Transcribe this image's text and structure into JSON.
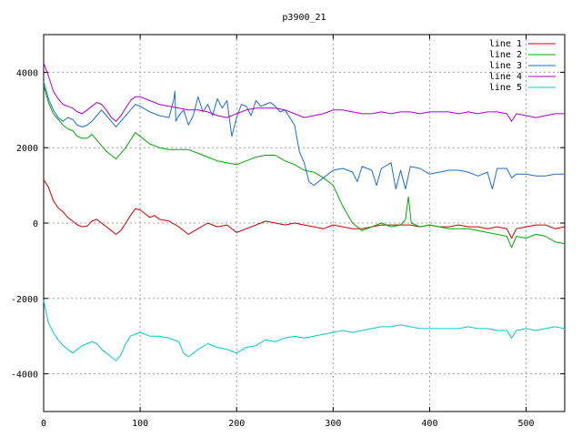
{
  "chart_data": {
    "type": "line",
    "title": "p3900_21",
    "xlabel": "",
    "ylabel": "",
    "xlim": [
      0,
      540
    ],
    "ylim": [
      -5000,
      5000
    ],
    "xticks": [
      0,
      100,
      200,
      300,
      400,
      500
    ],
    "yticks": [
      -4000,
      -2000,
      0,
      2000,
      4000
    ],
    "grid": true,
    "legend_position": "top-right",
    "series": [
      {
        "name": "line 1",
        "color": "#cc0000",
        "x": [
          0,
          5,
          10,
          15,
          20,
          25,
          30,
          35,
          40,
          45,
          50,
          55,
          60,
          65,
          70,
          75,
          80,
          85,
          90,
          95,
          100,
          105,
          110,
          115,
          120,
          130,
          140,
          150,
          160,
          170,
          180,
          190,
          200,
          210,
          220,
          230,
          240,
          250,
          260,
          270,
          280,
          290,
          300,
          310,
          320,
          330,
          340,
          350,
          360,
          370,
          380,
          390,
          400,
          410,
          420,
          430,
          440,
          450,
          460,
          470,
          480,
          485,
          490,
          500,
          510,
          520,
          530,
          540
        ],
        "y": [
          1150,
          950,
          600,
          400,
          300,
          150,
          50,
          -50,
          -100,
          -80,
          50,
          100,
          0,
          -100,
          -200,
          -300,
          -200,
          0,
          200,
          380,
          350,
          250,
          150,
          200,
          100,
          50,
          -100,
          -300,
          -150,
          0,
          -100,
          -50,
          -250,
          -150,
          -50,
          50,
          0,
          -50,
          0,
          -50,
          -100,
          -150,
          -50,
          -100,
          -150,
          -150,
          -100,
          -50,
          -50,
          -50,
          -50,
          -100,
          -50,
          -100,
          -100,
          -50,
          -100,
          -100,
          -150,
          -100,
          -150,
          -400,
          -150,
          -100,
          -50,
          -50,
          -150,
          -100
        ]
      },
      {
        "name": "line 2",
        "color": "#00aa00",
        "x": [
          0,
          5,
          10,
          15,
          20,
          25,
          30,
          35,
          40,
          45,
          50,
          55,
          60,
          65,
          70,
          75,
          80,
          85,
          90,
          95,
          100,
          110,
          120,
          130,
          140,
          150,
          160,
          170,
          180,
          190,
          200,
          210,
          220,
          230,
          240,
          250,
          260,
          270,
          280,
          290,
          300,
          310,
          320,
          330,
          340,
          350,
          360,
          370,
          375,
          378,
          381,
          390,
          400,
          410,
          420,
          430,
          440,
          450,
          460,
          470,
          480,
          485,
          490,
          500,
          510,
          520,
          530,
          540
        ],
        "y": [
          3650,
          3200,
          2900,
          2750,
          2600,
          2500,
          2450,
          2300,
          2250,
          2250,
          2350,
          2200,
          2050,
          1900,
          1800,
          1700,
          1850,
          2000,
          2200,
          2400,
          2300,
          2100,
          2000,
          1950,
          1950,
          1950,
          1850,
          1750,
          1650,
          1600,
          1550,
          1650,
          1750,
          1800,
          1800,
          1650,
          1550,
          1400,
          1350,
          1200,
          1000,
          450,
          0,
          -200,
          -100,
          0,
          -100,
          -50,
          100,
          700,
          0,
          -100,
          -50,
          -100,
          -150,
          -150,
          -150,
          -200,
          -250,
          -300,
          -350,
          -650,
          -350,
          -400,
          -300,
          -350,
          -500,
          -550
        ]
      },
      {
        "name": "line 3",
        "color": "#1a6fcc",
        "x": [
          0,
          5,
          10,
          15,
          20,
          25,
          30,
          35,
          40,
          45,
          50,
          55,
          60,
          65,
          70,
          75,
          80,
          85,
          90,
          95,
          100,
          110,
          120,
          130,
          135,
          136,
          137,
          140,
          145,
          150,
          155,
          160,
          165,
          170,
          175,
          180,
          185,
          190,
          195,
          200,
          205,
          210,
          215,
          220,
          225,
          230,
          235,
          240,
          245,
          250,
          255,
          260,
          265,
          270,
          275,
          280,
          290,
          300,
          310,
          320,
          325,
          330,
          340,
          345,
          350,
          360,
          365,
          370,
          375,
          380,
          390,
          400,
          410,
          420,
          430,
          440,
          450,
          460,
          465,
          470,
          480,
          485,
          490,
          500,
          510,
          520,
          530,
          540
        ],
        "y": [
          3750,
          3300,
          3000,
          2800,
          2700,
          2800,
          2750,
          2600,
          2550,
          2600,
          2700,
          2850,
          3000,
          2850,
          2700,
          2550,
          2700,
          2850,
          3000,
          3150,
          3100,
          2950,
          2850,
          2800,
          3300,
          3500,
          2700,
          2850,
          3000,
          2600,
          2850,
          3350,
          2950,
          3150,
          2850,
          3300,
          3050,
          3250,
          2300,
          2800,
          3150,
          3100,
          2850,
          3250,
          3100,
          3150,
          3200,
          3100,
          2950,
          3000,
          2800,
          2600,
          1900,
          1600,
          1100,
          1000,
          1200,
          1400,
          1450,
          1350,
          1100,
          1500,
          1400,
          1000,
          1450,
          1600,
          900,
          1400,
          900,
          1500,
          1450,
          1300,
          1350,
          1400,
          1400,
          1350,
          1250,
          1350,
          900,
          1450,
          1450,
          1200,
          1300,
          1300,
          1250,
          1250,
          1300,
          1300
        ]
      },
      {
        "name": "line 4",
        "color": "#aa00cc",
        "x": [
          0,
          5,
          10,
          15,
          20,
          25,
          30,
          35,
          40,
          45,
          50,
          55,
          60,
          65,
          70,
          75,
          80,
          85,
          90,
          95,
          100,
          110,
          120,
          130,
          140,
          150,
          160,
          170,
          180,
          190,
          200,
          210,
          220,
          230,
          240,
          250,
          260,
          270,
          280,
          290,
          300,
          310,
          320,
          330,
          340,
          350,
          360,
          370,
          380,
          390,
          400,
          410,
          420,
          430,
          440,
          450,
          460,
          470,
          480,
          485,
          490,
          500,
          510,
          520,
          530,
          540
        ],
        "y": [
          4250,
          3900,
          3500,
          3300,
          3150,
          3100,
          3050,
          2950,
          2900,
          3000,
          3100,
          3200,
          3150,
          3000,
          2800,
          2700,
          2850,
          3050,
          3250,
          3350,
          3350,
          3250,
          3150,
          3100,
          3050,
          3000,
          3000,
          2950,
          2850,
          2800,
          2900,
          3000,
          3050,
          3050,
          3050,
          3000,
          2900,
          2800,
          2850,
          2900,
          3000,
          3000,
          2950,
          2900,
          2900,
          2950,
          2900,
          2950,
          2950,
          2900,
          2950,
          2950,
          2950,
          2900,
          2950,
          2900,
          2950,
          2950,
          2900,
          2700,
          2900,
          2850,
          2800,
          2850,
          2900,
          2900
        ]
      },
      {
        "name": "line 5",
        "color": "#00cccc",
        "x": [
          0,
          5,
          10,
          15,
          20,
          25,
          30,
          35,
          40,
          45,
          50,
          55,
          60,
          65,
          70,
          75,
          80,
          85,
          90,
          95,
          100,
          110,
          120,
          130,
          140,
          145,
          150,
          160,
          170,
          180,
          190,
          200,
          210,
          220,
          230,
          240,
          250,
          260,
          270,
          280,
          290,
          300,
          310,
          320,
          330,
          340,
          350,
          360,
          370,
          380,
          390,
          400,
          410,
          420,
          430,
          440,
          450,
          460,
          470,
          480,
          485,
          490,
          500,
          510,
          520,
          530,
          540
        ],
        "y": [
          -2050,
          -2650,
          -2900,
          -3100,
          -3250,
          -3350,
          -3450,
          -3350,
          -3250,
          -3200,
          -3150,
          -3200,
          -3350,
          -3450,
          -3550,
          -3650,
          -3500,
          -3200,
          -3000,
          -2950,
          -2900,
          -3000,
          -3000,
          -3050,
          -3150,
          -3450,
          -3550,
          -3350,
          -3200,
          -3300,
          -3350,
          -3450,
          -3300,
          -3250,
          -3100,
          -3150,
          -3050,
          -3000,
          -3050,
          -3000,
          -2950,
          -2900,
          -2850,
          -2900,
          -2850,
          -2800,
          -2750,
          -2750,
          -2700,
          -2750,
          -2800,
          -2800,
          -2800,
          -2800,
          -2800,
          -2750,
          -2800,
          -2800,
          -2850,
          -2850,
          -3050,
          -2850,
          -2800,
          -2850,
          -2800,
          -2750,
          -2800
        ]
      }
    ]
  }
}
